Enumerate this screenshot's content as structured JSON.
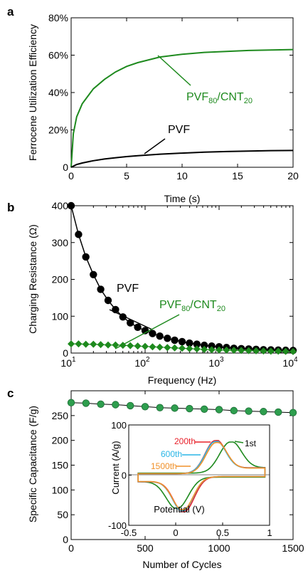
{
  "colors": {
    "green": "#1e8a1e",
    "black": "#000000",
    "dark_green_marker": "#2e9e4e",
    "red": "#e8202a",
    "cyan": "#29b6e6",
    "orange": "#f0912a"
  },
  "panels": {
    "a": {
      "letter": "a"
    },
    "b": {
      "letter": "b"
    },
    "c": {
      "letter": "c"
    }
  },
  "chart_data": [
    {
      "type": "line",
      "panel": "a",
      "xlabel": "Time (s)",
      "ylabel": "Ferrocene Utilization Efficiency",
      "xlim": [
        0,
        20
      ],
      "ylim": [
        0,
        80
      ],
      "xticks": [
        "0",
        "5",
        "10",
        "15",
        "20"
      ],
      "yticks": [
        "0",
        "20%",
        "40%",
        "60%",
        "80%"
      ],
      "annotations": [
        "PVF",
        "PVF80/CNT20"
      ],
      "series": [
        {
          "name": "PVF80/CNT20",
          "color": "#1e8a1e",
          "x": [
            0,
            0.2,
            0.5,
            1,
            2,
            3,
            4,
            5,
            6,
            8,
            10,
            12,
            14,
            16,
            18,
            20
          ],
          "y": [
            0,
            18,
            27,
            34,
            42,
            47,
            51,
            54,
            56,
            59,
            60.5,
            61.5,
            62,
            62.5,
            62.8,
            63
          ]
        },
        {
          "name": "PVF",
          "color": "#000000",
          "x": [
            0,
            0.5,
            1,
            2,
            3,
            4,
            5,
            6,
            8,
            10,
            12,
            14,
            16,
            18,
            20
          ],
          "y": [
            0,
            1.5,
            2.3,
            3.5,
            4.4,
            5.1,
            5.7,
            6.2,
            7,
            7.6,
            8.1,
            8.4,
            8.7,
            8.9,
            9
          ]
        }
      ]
    },
    {
      "type": "line",
      "panel": "b",
      "xlabel": "Frequency (Hz)",
      "ylabel": "Charging Resistance (Ω)",
      "xscale": "log",
      "xlim": [
        10,
        10000
      ],
      "ylim": [
        0,
        400
      ],
      "xticks": [
        "10^1",
        "10^2",
        "10^3",
        "10^4"
      ],
      "yticks": [
        "0",
        "100",
        "200",
        "300",
        "400"
      ],
      "annotations": [
        "PVF",
        "PVF80/CNT20"
      ],
      "series": [
        {
          "name": "PVF",
          "color": "#000000",
          "marker": "circle",
          "x": [
            10,
            12.6,
            15.8,
            20,
            25.1,
            31.6,
            39.8,
            50.1,
            63.1,
            79.4,
            100,
            126,
            158,
            200,
            251,
            316,
            398,
            501,
            631,
            794,
            1000,
            1259,
            1585,
            1995,
            2512,
            3162,
            3981,
            5012,
            6310,
            7943,
            10000
          ],
          "y": [
            400,
            322,
            261,
            213,
            173,
            143,
            118,
            98,
            82,
            70,
            61,
            53,
            46,
            40,
            35,
            31,
            27,
            24,
            21,
            19,
            17,
            15,
            13,
            12,
            11,
            10,
            9,
            8.5,
            8,
            7.5,
            7
          ]
        },
        {
          "name": "PVF80/CNT20",
          "color": "#1e8a1e",
          "marker": "diamond",
          "x": [
            10,
            12.6,
            15.8,
            20,
            25.1,
            31.6,
            39.8,
            50.1,
            63.1,
            79.4,
            100,
            126,
            158,
            200,
            251,
            316,
            398,
            501,
            631,
            794,
            1000,
            1259,
            1585,
            1995,
            2512,
            3162,
            3981,
            5012,
            6310,
            7943,
            10000
          ],
          "y": [
            25,
            25,
            24,
            24,
            23,
            22,
            22,
            21,
            20,
            19,
            18,
            17,
            16,
            15,
            14,
            13,
            12,
            11,
            10,
            9,
            8.5,
            8,
            7.5,
            7,
            6.5,
            6,
            5.5,
            5,
            5,
            4.5,
            4
          ]
        }
      ]
    },
    {
      "type": "scatter",
      "panel": "c",
      "xlabel": "Number of Cycles",
      "ylabel": "Specific Capacitance (F/g)",
      "xlim": [
        0,
        1500
      ],
      "ylim": [
        0,
        300
      ],
      "xticks": [
        "0",
        "500",
        "1000",
        "1500"
      ],
      "yticks": [
        "0",
        "50",
        "100",
        "150",
        "200",
        "250"
      ],
      "series": [
        {
          "name": "",
          "color": "#2e9e4e",
          "x": [
            0,
            100,
            200,
            300,
            400,
            500,
            600,
            700,
            800,
            900,
            1000,
            1100,
            1200,
            1300,
            1400,
            1500
          ],
          "y": [
            276,
            275,
            273,
            272,
            270,
            268,
            266,
            265,
            264,
            263,
            262,
            260,
            259,
            258,
            257,
            256
          ]
        }
      ]
    },
    {
      "type": "line",
      "panel": "c-inset",
      "xlabel": "Potential (V)",
      "ylabel": "Current (A/g)",
      "xlim": [
        -0.5,
        1
      ],
      "ylim": [
        -100,
        100
      ],
      "xticks": [
        "-0.5",
        "0",
        "0.5",
        "1"
      ],
      "yticks": [
        "-100",
        "0",
        "100"
      ],
      "series": [
        {
          "name": "1st",
          "color": "#1e8a1e"
        },
        {
          "name": "200th",
          "color": "#e8202a"
        },
        {
          "name": "600th",
          "color": "#29b6e6"
        },
        {
          "name": "1500th",
          "color": "#f0912a"
        }
      ]
    }
  ]
}
